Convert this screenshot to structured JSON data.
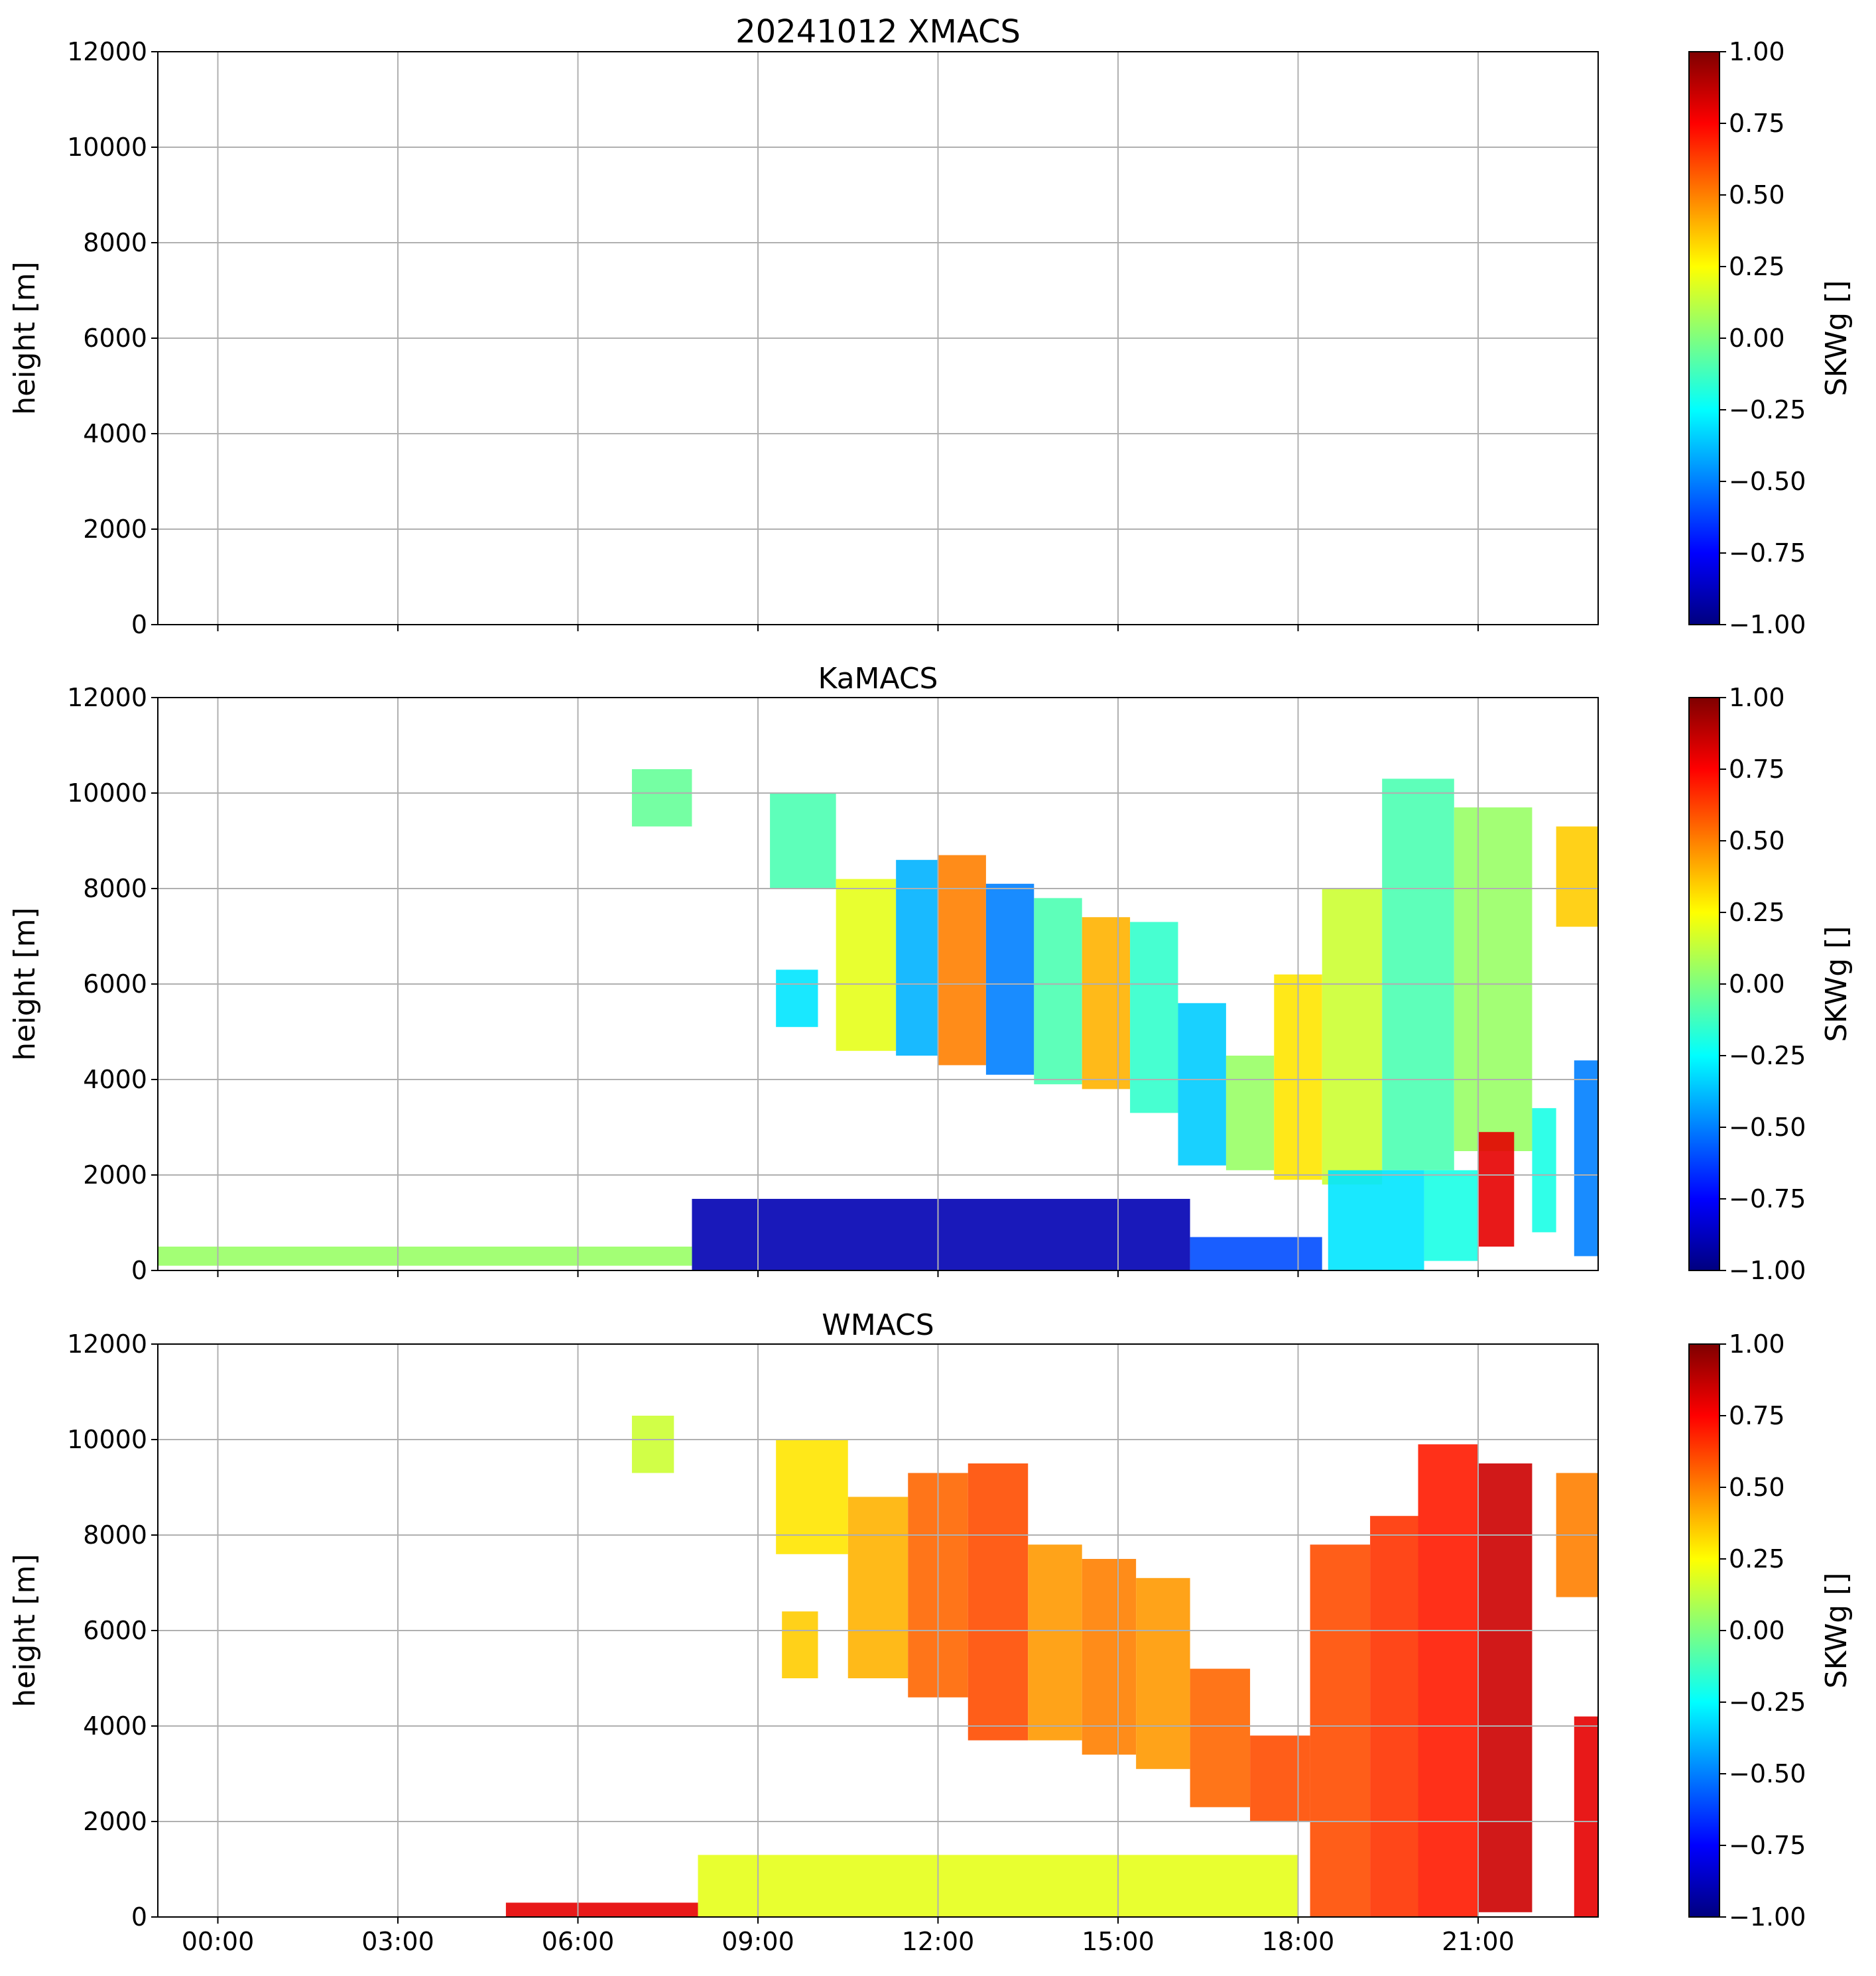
{
  "figure": {
    "title": "20241012 XMACS"
  },
  "chart_data": [
    {
      "type": "heatmap",
      "title": "20241012 XMACS",
      "xlabel": "",
      "ylabel": "height [m]",
      "xlim_hours": [
        -1,
        23
      ],
      "ylim": [
        0,
        12000
      ],
      "grid": true,
      "xtick_labels": [
        "00:00",
        "03:00",
        "06:00",
        "09:00",
        "12:00",
        "15:00",
        "18:00",
        "21:00"
      ],
      "xtick_labels_visible": false,
      "ytick_values": [
        0,
        2000,
        4000,
        6000,
        8000,
        10000,
        12000
      ],
      "colorbar": {
        "label": "SKWg []",
        "colormap": "jet",
        "range": [
          -1.0,
          1.0
        ],
        "tick_labels": [
          "1.00",
          "0.75",
          "0.50",
          "0.25",
          "0.00",
          "−0.25",
          "−0.50",
          "−0.75",
          "−1.00"
        ]
      },
      "cells": []
    },
    {
      "type": "heatmap",
      "title": "KaMACS",
      "xlabel": "",
      "ylabel": "height [m]",
      "xlim_hours": [
        -1,
        23
      ],
      "ylim": [
        0,
        12000
      ],
      "grid": true,
      "xtick_labels": [
        "00:00",
        "03:00",
        "06:00",
        "09:00",
        "12:00",
        "15:00",
        "18:00",
        "21:00"
      ],
      "xtick_labels_visible": false,
      "ytick_values": [
        0,
        2000,
        4000,
        6000,
        8000,
        10000,
        12000
      ],
      "colorbar": {
        "label": "SKWg []",
        "colormap": "jet",
        "range": [
          -1.0,
          1.0
        ],
        "tick_labels": [
          "1.00",
          "0.75",
          "0.50",
          "0.25",
          "0.00",
          "−0.25",
          "−0.50",
          "−0.75",
          "−1.00"
        ]
      },
      "cells": [
        {
          "t0": 6.9,
          "t1": 7.9,
          "h0": 9300,
          "h1": 10500,
          "v": -0.05
        },
        {
          "t0": 9.2,
          "t1": 10.3,
          "h0": 8000,
          "h1": 10000,
          "v": -0.1
        },
        {
          "t0": 9.3,
          "t1": 10.0,
          "h0": 5100,
          "h1": 6300,
          "v": -0.3
        },
        {
          "t0": 10.3,
          "t1": 11.3,
          "h0": 4600,
          "h1": 8200,
          "v": 0.2
        },
        {
          "t0": 11.3,
          "t1": 12.0,
          "h0": 4500,
          "h1": 8600,
          "v": -0.4
        },
        {
          "t0": 12.0,
          "t1": 12.8,
          "h0": 4300,
          "h1": 8700,
          "v": 0.5
        },
        {
          "t0": 12.8,
          "t1": 13.6,
          "h0": 4100,
          "h1": 8100,
          "v": -0.5
        },
        {
          "t0": 13.6,
          "t1": 14.4,
          "h0": 3900,
          "h1": 7800,
          "v": -0.1
        },
        {
          "t0": 14.4,
          "t1": 15.2,
          "h0": 3800,
          "h1": 7400,
          "v": 0.4
        },
        {
          "t0": 15.2,
          "t1": 16.0,
          "h0": 3300,
          "h1": 7300,
          "v": -0.15
        },
        {
          "t0": 16.0,
          "t1": 16.8,
          "h0": 2200,
          "h1": 5600,
          "v": -0.35
        },
        {
          "t0": 16.8,
          "t1": 17.6,
          "h0": 2100,
          "h1": 4500,
          "v": 0.05
        },
        {
          "t0": 17.6,
          "t1": 18.4,
          "h0": 1900,
          "h1": 6200,
          "v": 0.3
        },
        {
          "t0": 18.4,
          "t1": 19.4,
          "h0": 1800,
          "h1": 8000,
          "v": 0.15
        },
        {
          "t0": 19.4,
          "t1": 20.6,
          "h0": 2100,
          "h1": 10300,
          "v": -0.1
        },
        {
          "t0": 20.6,
          "t1": 21.9,
          "h0": 2500,
          "h1": 9700,
          "v": 0.05
        },
        {
          "t0": 21.9,
          "t1": 22.3,
          "h0": 800,
          "h1": 3400,
          "v": -0.2
        },
        {
          "t0": 22.3,
          "t1": 23.0,
          "h0": 7200,
          "h1": 9300,
          "v": 0.35
        },
        {
          "t0": 22.6,
          "t1": 23.0,
          "h0": 300,
          "h1": 4400,
          "v": -0.5
        },
        {
          "t0": 18.5,
          "t1": 20.1,
          "h0": 0,
          "h1": 2100,
          "v": -0.3
        },
        {
          "t0": 20.1,
          "t1": 21.0,
          "h0": 200,
          "h1": 2100,
          "v": -0.2
        },
        {
          "t0": 21.0,
          "t1": 21.6,
          "h0": 500,
          "h1": 2900,
          "v": 0.8
        },
        {
          "t0": 7.9,
          "t1": 16.2,
          "h0": 0,
          "h1": 1500,
          "v": -0.9
        },
        {
          "t0": 16.2,
          "t1": 18.4,
          "h0": 0,
          "h1": 700,
          "v": -0.6
        },
        {
          "t0": -1.0,
          "t1": 7.9,
          "h0": 100,
          "h1": 500,
          "v": 0.05
        }
      ]
    },
    {
      "type": "heatmap",
      "title": "WMACS",
      "xlabel": "",
      "ylabel": "height [m]",
      "xlim_hours": [
        -1,
        23
      ],
      "ylim": [
        0,
        12000
      ],
      "grid": true,
      "xtick_labels": [
        "00:00",
        "03:00",
        "06:00",
        "09:00",
        "12:00",
        "15:00",
        "18:00",
        "21:00"
      ],
      "xtick_labels_visible": true,
      "ytick_values": [
        0,
        2000,
        4000,
        6000,
        8000,
        10000,
        12000
      ],
      "colorbar": {
        "label": "SKWg []",
        "colormap": "jet",
        "range": [
          -1.0,
          1.0
        ],
        "tick_labels": [
          "1.00",
          "0.75",
          "0.50",
          "0.25",
          "0.00",
          "−0.25",
          "−0.50",
          "−0.75",
          "−1.00"
        ]
      },
      "cells": [
        {
          "t0": 6.9,
          "t1": 7.6,
          "h0": 9300,
          "h1": 10500,
          "v": 0.15
        },
        {
          "t0": 9.3,
          "t1": 10.5,
          "h0": 7600,
          "h1": 10000,
          "v": 0.3
        },
        {
          "t0": 9.4,
          "t1": 10.0,
          "h0": 5000,
          "h1": 6400,
          "v": 0.35
        },
        {
          "t0": 10.5,
          "t1": 11.5,
          "h0": 5000,
          "h1": 8800,
          "v": 0.4
        },
        {
          "t0": 11.5,
          "t1": 12.5,
          "h0": 4600,
          "h1": 9300,
          "v": 0.55
        },
        {
          "t0": 12.5,
          "t1": 13.5,
          "h0": 3700,
          "h1": 9500,
          "v": 0.6
        },
        {
          "t0": 13.5,
          "t1": 14.4,
          "h0": 3700,
          "h1": 7800,
          "v": 0.45
        },
        {
          "t0": 14.4,
          "t1": 15.3,
          "h0": 3400,
          "h1": 7500,
          "v": 0.5
        },
        {
          "t0": 15.3,
          "t1": 16.2,
          "h0": 3100,
          "h1": 7100,
          "v": 0.45
        },
        {
          "t0": 16.2,
          "t1": 17.2,
          "h0": 2300,
          "h1": 5200,
          "v": 0.55
        },
        {
          "t0": 17.2,
          "t1": 18.2,
          "h0": 2000,
          "h1": 3800,
          "v": 0.6
        },
        {
          "t0": 18.2,
          "t1": 19.2,
          "h0": 0,
          "h1": 7800,
          "v": 0.6
        },
        {
          "t0": 19.2,
          "t1": 20.0,
          "h0": 0,
          "h1": 8400,
          "v": 0.65
        },
        {
          "t0": 20.0,
          "t1": 21.0,
          "h0": 0,
          "h1": 9900,
          "v": 0.7
        },
        {
          "t0": 21.0,
          "t1": 21.9,
          "h0": 100,
          "h1": 9500,
          "v": 0.85
        },
        {
          "t0": 22.3,
          "t1": 23.0,
          "h0": 6700,
          "h1": 9300,
          "v": 0.5
        },
        {
          "t0": 22.6,
          "t1": 23.0,
          "h0": 0,
          "h1": 4200,
          "v": 0.8
        },
        {
          "t0": 4.8,
          "t1": 8.0,
          "h0": 0,
          "h1": 300,
          "v": 0.8
        },
        {
          "t0": 8.0,
          "t1": 18.0,
          "h0": 0,
          "h1": 1300,
          "v": 0.2
        }
      ]
    }
  ]
}
